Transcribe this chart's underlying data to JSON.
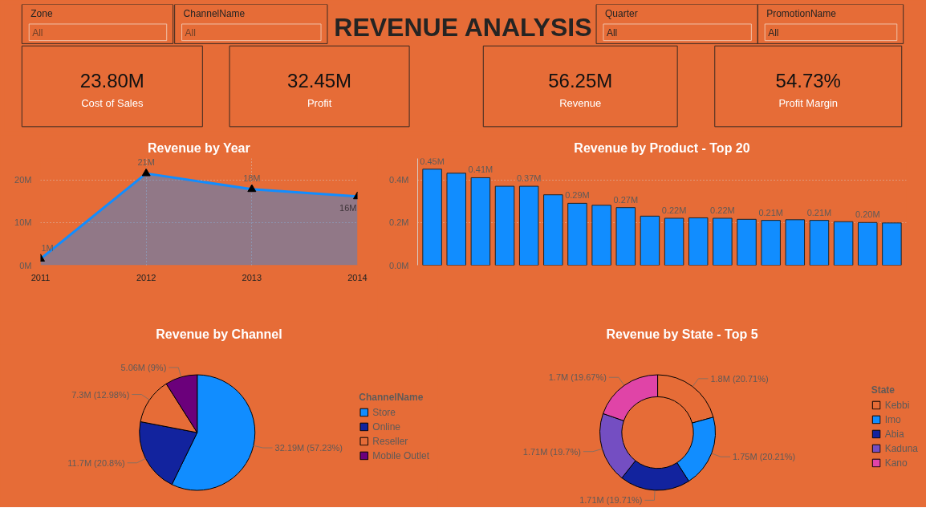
{
  "chart_data": [
    {
      "type": "other",
      "title": "REVENUE ANALYSIS",
      "annotations": [
        "Zone",
        "All",
        "ChannelName",
        "All",
        "Quarter",
        "All",
        "PromotionName",
        "All",
        "23.80M",
        "Cost of Sales",
        "32.45M",
        "Profit",
        "56.25M",
        "Revenue",
        "54.73%",
        "Profit Margin"
      ]
    },
    {
      "type": "area",
      "title": "Revenue by Year",
      "x": [
        2011,
        2012,
        2013,
        2014
      ],
      "series": [
        {
          "color": "#118dff",
          "values": [
            1.5,
            21.5,
            17.8,
            16.1
          ],
          "value_labels": [
            "1M",
            "21M",
            "18M",
            "16M"
          ]
        }
      ],
      "xlim": [
        2011,
        2014
      ],
      "ylim": [
        0,
        25
      ],
      "xticks": [
        2011,
        2012,
        2013,
        2014
      ],
      "yticks": [
        {
          "value": 0,
          "label": "0M"
        },
        {
          "value": 10,
          "label": "10M"
        },
        {
          "value": 20,
          "label": "20M"
        }
      ],
      "grid": true,
      "marker": "triangle"
    },
    {
      "type": "bar",
      "title": "Revenue by Product - Top 20",
      "categories": [
        null,
        null,
        null,
        null,
        null,
        null,
        null,
        null,
        null,
        null,
        null,
        null,
        null,
        null,
        null,
        null,
        null,
        null,
        null,
        null
      ],
      "color": "#118dff",
      "values": [
        0.45,
        0.431,
        0.41,
        0.37,
        0.37,
        0.33,
        0.29,
        0.281,
        0.27,
        0.23,
        0.22,
        0.222,
        0.22,
        0.215,
        0.21,
        0.213,
        0.21,
        0.204,
        0.2,
        0.198
      ],
      "value_labels": [
        "0.45M",
        null,
        "0.41M",
        null,
        "0.37M",
        null,
        "0.29M",
        null,
        "0.27M",
        null,
        "0.22M",
        null,
        "0.22M",
        null,
        "0.21M",
        null,
        "0.21M",
        null,
        "0.20M",
        null
      ],
      "ylim": [
        0,
        0.5
      ],
      "yticks": [
        {
          "value": 0,
          "label": "0.0M"
        },
        {
          "value": 0.2,
          "label": "0.2M"
        },
        {
          "value": 0.4,
          "label": "0.4M"
        }
      ],
      "grid": "y"
    },
    {
      "type": "pie",
      "title": "Revenue by Channel",
      "legend_title": "ChannelName",
      "legend": "right",
      "categories": [
        "Store",
        "Online",
        "Reseller",
        "Mobile Outlet"
      ],
      "values": [
        57.23,
        20.8,
        12.98,
        9
      ],
      "colors": [
        "#118dff",
        "#12239e",
        "#e66c37",
        "#6b007b"
      ],
      "value_labels": [
        "32.19M (57.23%)",
        "11.7M (20.8%)",
        "7.3M (12.98%)",
        "5.06M (9%)"
      ]
    },
    {
      "type": "donut",
      "title": "Revenue by State - Top 5",
      "legend_title": "State",
      "legend": "right",
      "categories": [
        "Kebbi",
        "Imo",
        "Abia",
        "Kaduna",
        "Kano"
      ],
      "values": [
        20.71,
        20.21,
        19.71,
        19.7,
        19.67
      ],
      "colors": [
        "#e66c37",
        "#118dff",
        "#12239e",
        "#744ec2",
        "#e044a7"
      ],
      "value_labels": [
        "1.8M (20.71%)",
        "1.75M (20.21%)",
        "1.71M (19.71%)",
        "1.71M (19.7%)",
        "1.7M (19.67%)"
      ]
    }
  ]
}
